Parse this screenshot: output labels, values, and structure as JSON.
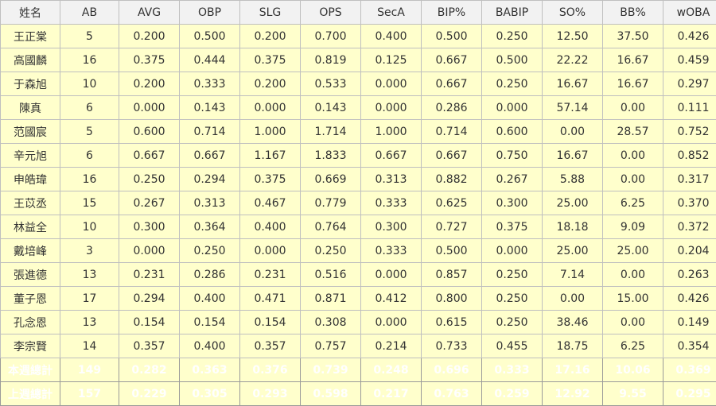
{
  "colors": {
    "header_bg": "#f2f2f2",
    "row_bg": "#ffffcc",
    "this_week_bg": "#1e4a7e",
    "last_week_bg": "#994c0c",
    "border": "#bfbfbf"
  },
  "table": {
    "headers": [
      "姓名",
      "AB",
      "AVG",
      "OBP",
      "SLG",
      "OPS",
      "SecA",
      "BIP%",
      "BABIP",
      "SO%",
      "BB%",
      "wOBA"
    ],
    "rows": [
      [
        "王正棠",
        "5",
        "0.200",
        "0.500",
        "0.200",
        "0.700",
        "0.400",
        "0.500",
        "0.250",
        "12.50",
        "37.50",
        "0.426"
      ],
      [
        "高國麟",
        "16",
        "0.375",
        "0.444",
        "0.375",
        "0.819",
        "0.125",
        "0.667",
        "0.500",
        "22.22",
        "16.67",
        "0.459"
      ],
      [
        "于森旭",
        "10",
        "0.200",
        "0.333",
        "0.200",
        "0.533",
        "0.000",
        "0.667",
        "0.250",
        "16.67",
        "16.67",
        "0.297"
      ],
      [
        "陳真",
        "6",
        "0.000",
        "0.143",
        "0.000",
        "0.143",
        "0.000",
        "0.286",
        "0.000",
        "57.14",
        "0.00",
        "0.111"
      ],
      [
        "范國宸",
        "5",
        "0.600",
        "0.714",
        "1.000",
        "1.714",
        "1.000",
        "0.714",
        "0.600",
        "0.00",
        "28.57",
        "0.752"
      ],
      [
        "辛元旭",
        "6",
        "0.667",
        "0.667",
        "1.167",
        "1.833",
        "0.667",
        "0.667",
        "0.750",
        "16.67",
        "0.00",
        "0.852"
      ],
      [
        "申皓瑋",
        "16",
        "0.250",
        "0.294",
        "0.375",
        "0.669",
        "0.313",
        "0.882",
        "0.267",
        "5.88",
        "0.00",
        "0.317"
      ],
      [
        "王苡丞",
        "15",
        "0.267",
        "0.313",
        "0.467",
        "0.779",
        "0.333",
        "0.625",
        "0.300",
        "25.00",
        "6.25",
        "0.370"
      ],
      [
        "林益全",
        "10",
        "0.300",
        "0.364",
        "0.400",
        "0.764",
        "0.300",
        "0.727",
        "0.375",
        "18.18",
        "9.09",
        "0.372"
      ],
      [
        "戴培峰",
        "3",
        "0.000",
        "0.250",
        "0.000",
        "0.250",
        "0.333",
        "0.500",
        "0.000",
        "25.00",
        "25.00",
        "0.204"
      ],
      [
        "張進德",
        "13",
        "0.231",
        "0.286",
        "0.231",
        "0.516",
        "0.000",
        "0.857",
        "0.250",
        "7.14",
        "0.00",
        "0.263"
      ],
      [
        "董子恩",
        "17",
        "0.294",
        "0.400",
        "0.471",
        "0.871",
        "0.412",
        "0.800",
        "0.250",
        "0.00",
        "15.00",
        "0.426"
      ],
      [
        "孔念恩",
        "13",
        "0.154",
        "0.154",
        "0.154",
        "0.308",
        "0.000",
        "0.615",
        "0.250",
        "38.46",
        "0.00",
        "0.149"
      ],
      [
        "李宗賢",
        "14",
        "0.357",
        "0.400",
        "0.357",
        "0.757",
        "0.214",
        "0.733",
        "0.455",
        "18.75",
        "6.25",
        "0.354"
      ]
    ],
    "totals": [
      {
        "key": "this-week",
        "cells": [
          "本週總計",
          "149",
          "0.282",
          "0.363",
          "0.376",
          "0.739",
          "0.248",
          "0.696",
          "0.333",
          "17.16",
          "10.06",
          "0.369"
        ]
      },
      {
        "key": "last-week",
        "cells": [
          "上週總計",
          "157",
          "0.229",
          "0.305",
          "0.293",
          "0.598",
          "0.217",
          "0.763",
          "0.259",
          "12.92",
          "9.55",
          "0.295"
        ]
      }
    ]
  }
}
